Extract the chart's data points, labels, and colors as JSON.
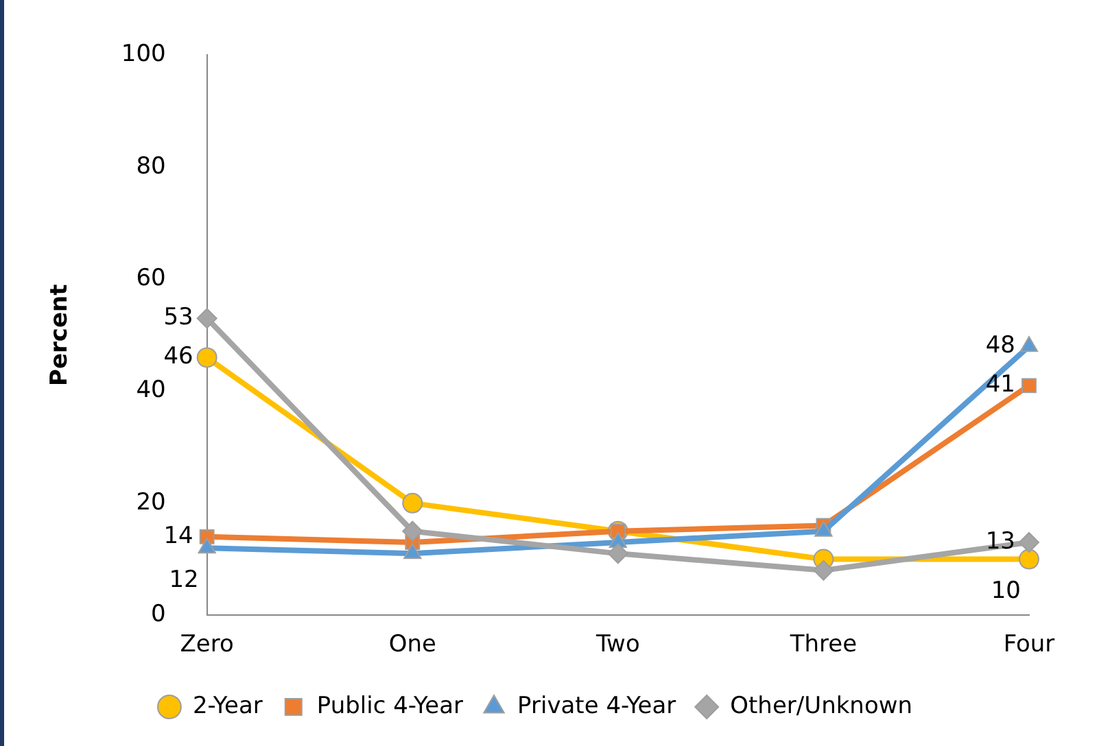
{
  "chart_data": {
    "type": "line",
    "ylabel": "Percent",
    "categories": [
      "Zero",
      "One",
      "Two",
      "Three",
      "Four"
    ],
    "series": [
      {
        "name": "2-Year",
        "color": "#ffc000",
        "marker": "circle",
        "values": [
          46,
          20,
          15,
          10,
          10
        ],
        "value_labels": [
          "46",
          null,
          null,
          null,
          "10"
        ]
      },
      {
        "name": "Public 4-Year",
        "color": "#ed7d31",
        "marker": "square",
        "values": [
          14,
          13,
          15,
          16,
          41
        ],
        "value_labels": [
          "14",
          null,
          null,
          null,
          "41"
        ]
      },
      {
        "name": "Private 4-Year",
        "color": "#5b9bd5",
        "marker": "triangle",
        "values": [
          12,
          11,
          13,
          15,
          48
        ],
        "value_labels": [
          "12",
          null,
          null,
          null,
          "48"
        ]
      },
      {
        "name": "Other/Unknown",
        "color": "#a5a5a5",
        "marker": "diamond",
        "values": [
          53,
          15,
          11,
          8,
          13
        ],
        "value_labels": [
          "53",
          null,
          null,
          null,
          "13"
        ]
      }
    ],
    "ylim": [
      0,
      100
    ],
    "yticks": [
      0,
      20,
      40,
      60,
      80,
      100
    ],
    "grid": false,
    "legend": "bottom"
  }
}
